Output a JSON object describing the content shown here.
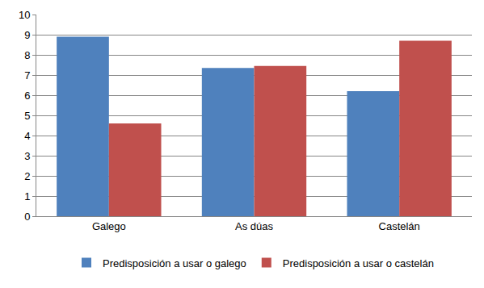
{
  "chart_data": {
    "type": "bar",
    "categories": [
      "Galego",
      "As dúas",
      "Castelán"
    ],
    "series": [
      {
        "name": "Predisposición a usar o galego",
        "color": "#4f81bd",
        "values": [
          8.9,
          7.35,
          6.2
        ]
      },
      {
        "name": "Predisposición a usar o castelán",
        "color": "#c0504d",
        "values": [
          4.6,
          7.45,
          8.7
        ]
      }
    ],
    "ylim": [
      0,
      10
    ],
    "yticks": [
      0,
      1,
      2,
      3,
      4,
      5,
      6,
      7,
      8,
      9,
      10
    ],
    "grid": true,
    "legend": "bottom"
  }
}
